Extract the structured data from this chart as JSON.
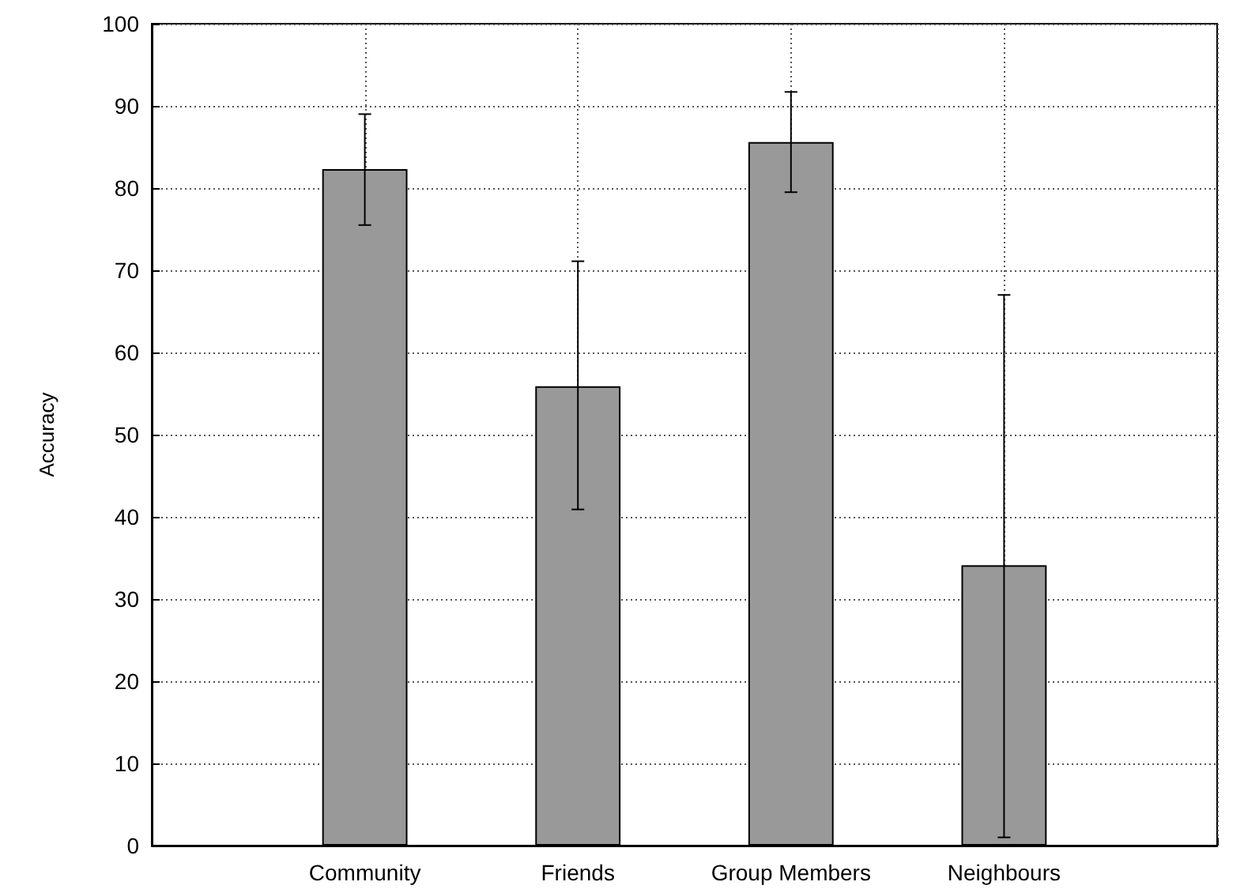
{
  "chart_data": {
    "type": "bar",
    "ylabel": "Accuracy",
    "categories": [
      "Community",
      "Friends",
      "Group Members",
      "Neighbours"
    ],
    "values": [
      82.3,
      55.9,
      85.6,
      34.1
    ],
    "errors": [
      [
        75.5,
        89.0
      ],
      [
        40.9,
        71.1
      ],
      [
        79.5,
        91.7
      ],
      [
        1.0,
        67.0
      ]
    ],
    "color": "#999999",
    "ylim": [
      0,
      100
    ],
    "yticks": [
      0,
      10,
      20,
      30,
      40,
      50,
      60,
      70,
      80,
      90,
      100
    ],
    "grid": true
  }
}
